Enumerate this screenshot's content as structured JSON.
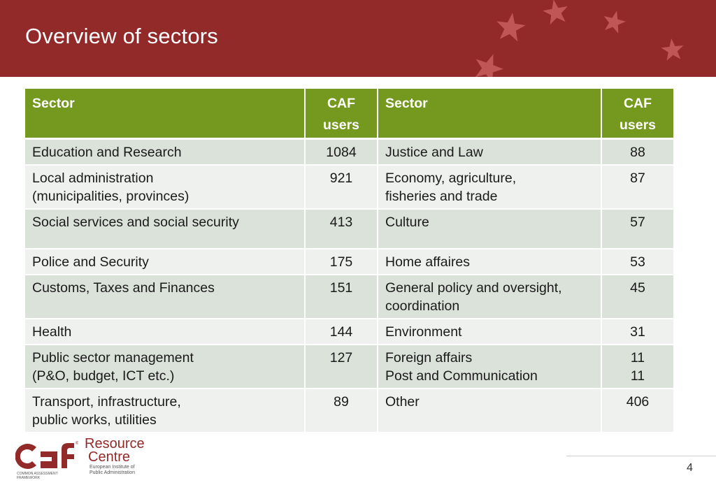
{
  "header": {
    "title": "Overview of sectors"
  },
  "table": {
    "headers": [
      "Sector",
      "CAF\nusers",
      "Sector",
      "CAF\nusers"
    ],
    "rows": [
      [
        "Education and Research",
        "1084",
        "Justice and Law",
        "88"
      ],
      [
        "Local administration\n(municipalities, provinces)",
        "921",
        "Economy, agriculture,\nfisheries and trade",
        "87"
      ],
      [
        "Social services and social security",
        "413",
        "Culture",
        "57"
      ],
      [
        "Police and Security",
        "175",
        "Home affaires",
        "53"
      ],
      [
        "Customs, Taxes and Finances",
        "151",
        "General policy and oversight,\ncoordination",
        "45"
      ],
      [
        "Health",
        "144",
        "Environment",
        "31"
      ],
      [
        "Public sector management\n(P&O, budget, ICT etc.)",
        "127",
        "Foreign affairs\nPost and Communication",
        "11\n11"
      ],
      [
        "Transport, infrastructure,\npublic works, utilities",
        "89",
        "Other",
        "406"
      ]
    ]
  },
  "logo": {
    "mark": "caf",
    "line1": "Resource",
    "line2": "Centre",
    "org": "European Institute of\nPublic Administration",
    "sub": "COMMON ASSESSMENT\nFRAMEWORK"
  },
  "footer": {
    "page_number": "4"
  },
  "colors": {
    "header_bg": "#922a29",
    "table_header_bg": "#74991e",
    "row_shade": "#dbe2da",
    "row_light": "#eef1ee"
  }
}
